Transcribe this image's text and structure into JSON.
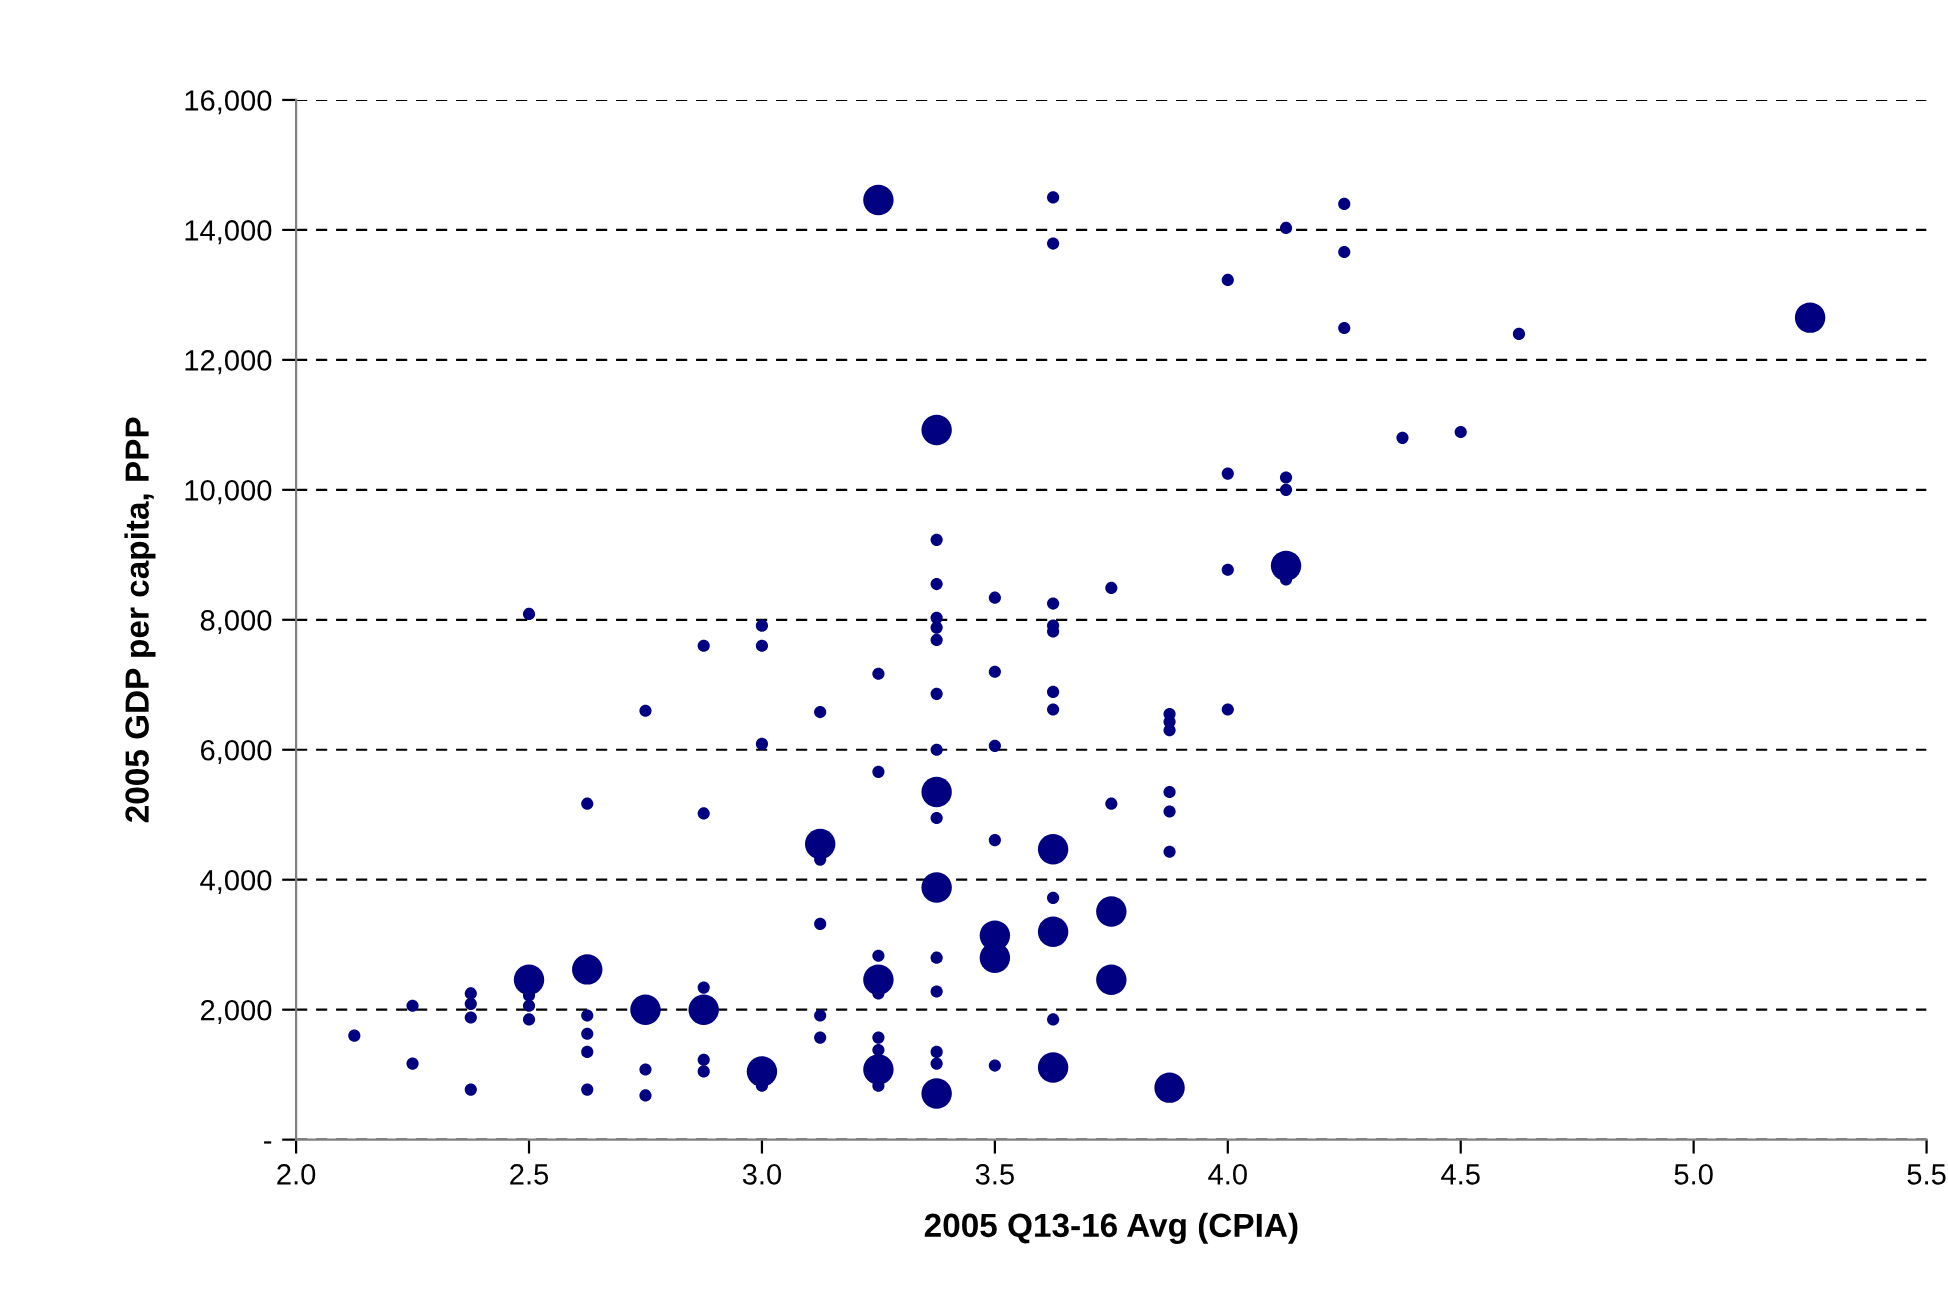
{
  "chart_data": {
    "type": "bubble",
    "xlabel": "2005 Q13-16 Avg (CPIA)",
    "ylabel": "2005 GDP per capita, PPP",
    "xlim": [
      2.0,
      5.5
    ],
    "xticks": [
      {
        "value": 2.0,
        "label": "2.0"
      },
      {
        "value": 2.5,
        "label": "2.5"
      },
      {
        "value": 3.0,
        "label": "3.0"
      },
      {
        "value": 3.5,
        "label": "3.5"
      },
      {
        "value": 4.0,
        "label": "4.0"
      },
      {
        "value": 4.5,
        "label": "4.5"
      },
      {
        "value": 5.0,
        "label": "5.0"
      },
      {
        "value": 5.5,
        "label": "5.5"
      }
    ],
    "ylim": [
      0,
      16000
    ],
    "yticks": [
      {
        "value": 0,
        "label": "-"
      },
      {
        "value": 2000,
        "label": "2,000"
      },
      {
        "value": 4000,
        "label": "4,000"
      },
      {
        "value": 6000,
        "label": "6,000"
      },
      {
        "value": 8000,
        "label": "8,000"
      },
      {
        "value": 10000,
        "label": "10,000"
      },
      {
        "value": 12000,
        "label": "12,000"
      },
      {
        "value": 14000,
        "label": "14,000"
      },
      {
        "value": 16000,
        "label": "16,000"
      }
    ],
    "grid": "y",
    "line_style": "dashed",
    "marker": "circle",
    "series": [
      {
        "color": "#000080",
        "x": [
          2.5,
          2.625,
          2.75,
          2.875,
          3.0,
          3.125,
          3.25,
          3.25,
          3.25,
          3.375,
          3.375,
          3.375,
          3.375,
          3.5,
          3.5,
          3.625,
          3.625,
          3.625,
          3.75,
          3.75,
          3.875,
          4.125,
          5.25,
          2.125,
          2.25,
          2.25,
          2.375,
          2.375,
          2.375,
          2.375,
          2.5,
          2.5,
          2.5,
          2.5,
          2.625,
          2.625,
          2.625,
          2.625,
          2.625,
          2.75,
          2.75,
          2.75,
          2.875,
          2.875,
          2.875,
          2.875,
          2.875,
          3.0,
          3.0,
          3.0,
          3.0,
          3.125,
          3.125,
          3.125,
          3.125,
          3.125,
          3.25,
          3.25,
          3.25,
          3.25,
          3.25,
          3.25,
          3.25,
          3.375,
          3.375,
          3.375,
          3.375,
          3.375,
          3.375,
          3.375,
          3.375,
          3.375,
          3.375,
          3.375,
          3.375,
          3.5,
          3.5,
          3.5,
          3.5,
          3.5,
          3.625,
          3.625,
          3.625,
          3.625,
          3.625,
          3.625,
          3.625,
          3.625,
          3.625,
          3.75,
          3.75,
          3.875,
          3.875,
          3.875,
          3.875,
          3.875,
          3.875,
          4.0,
          4.0,
          4.0,
          4.0,
          4.125,
          4.125,
          4.125,
          4.125,
          4.25,
          4.25,
          4.25,
          4.375,
          4.5,
          4.625
        ],
        "values": [
          2460,
          2620,
          2000,
          2000,
          1050,
          4550,
          14460,
          2460,
          1080,
          10920,
          5350,
          3880,
          710,
          3140,
          2800,
          4470,
          3200,
          1110,
          3510,
          2460,
          800,
          8830,
          12650,
          1600,
          2060,
          1170,
          2250,
          2090,
          1880,
          770,
          8090,
          2220,
          2060,
          1850,
          5170,
          1910,
          1630,
          1350,
          770,
          6600,
          1080,
          680,
          7600,
          5020,
          2340,
          1230,
          1050,
          7910,
          7600,
          6090,
          830,
          6580,
          4310,
          3320,
          1910,
          1570,
          7170,
          5660,
          2830,
          2250,
          1570,
          1380,
          830,
          9230,
          8550,
          8030,
          7880,
          7690,
          6860,
          6000,
          4950,
          2800,
          2280,
          1350,
          1170,
          8340,
          7200,
          6060,
          4610,
          1140,
          14500,
          13790,
          8250,
          7910,
          7820,
          6890,
          6620,
          3720,
          1850,
          8490,
          5170,
          6550,
          6430,
          6300,
          5350,
          5050,
          4430,
          13230,
          10250,
          8770,
          6620,
          14030,
          10190,
          10000,
          8620,
          14400,
          13660,
          12490,
          10800,
          10890,
          12400
        ],
        "sizes": [
          1,
          1,
          1,
          1,
          1,
          1,
          1,
          1,
          1,
          1,
          1,
          1,
          1,
          1,
          1,
          1,
          1,
          1,
          1,
          1,
          1,
          1,
          1,
          0.16,
          0.16,
          0.16,
          0.16,
          0.16,
          0.16,
          0.16,
          0.16,
          0.16,
          0.16,
          0.16,
          0.16,
          0.16,
          0.16,
          0.16,
          0.16,
          0.16,
          0.16,
          0.16,
          0.16,
          0.16,
          0.16,
          0.16,
          0.16,
          0.16,
          0.16,
          0.16,
          0.16,
          0.16,
          0.16,
          0.16,
          0.16,
          0.16,
          0.16,
          0.16,
          0.16,
          0.16,
          0.16,
          0.16,
          0.16,
          0.16,
          0.16,
          0.16,
          0.16,
          0.16,
          0.16,
          0.16,
          0.16,
          0.16,
          0.16,
          0.16,
          0.16,
          0.16,
          0.16,
          0.16,
          0.16,
          0.16,
          0.16,
          0.16,
          0.16,
          0.16,
          0.16,
          0.16,
          0.16,
          0.16,
          0.16,
          0.16,
          0.16,
          0.16,
          0.16,
          0.16,
          0.16,
          0.16,
          0.16,
          0.16,
          0.16,
          0.16,
          0.16,
          0.16,
          0.16,
          0.16,
          0.16,
          0.16,
          0.16,
          0.16,
          0.16,
          0.16,
          0.16
        ]
      }
    ]
  }
}
